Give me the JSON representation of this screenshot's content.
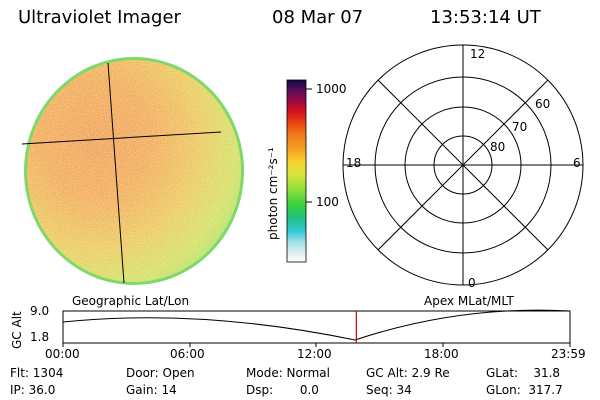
{
  "header": {
    "title": "Ultraviolet Imager",
    "date": "08 Mar 07",
    "time": "13:53:14 UT"
  },
  "colorbar": {
    "unit_label": "photon cm⁻²s⁻¹",
    "ticks": [
      "1000",
      "100"
    ]
  },
  "polar_plot": {
    "mlt_labels": {
      "top": "12",
      "left": "18",
      "right": "6",
      "bottom": "0"
    },
    "lat_labels": [
      "60",
      "70",
      "80"
    ]
  },
  "altitude_panel": {
    "left_title": "Geographic Lat/Lon",
    "right_title": "Apex MLat/MLT",
    "y_axis_title": "GC Alt",
    "y_max": "9.0",
    "y_min": "1.8",
    "x_ticks": [
      "00:00",
      "06:00",
      "12:00",
      "18:00",
      "23:59"
    ],
    "current_time_fraction": 0.5786,
    "marker_color": "#cc0000"
  },
  "info": {
    "flt": "Flt: 1304",
    "ip": "IP: 36.0",
    "door": "Door: Open",
    "gain": "Gain: 14",
    "mode": "Mode: Normal",
    "dsp": "Dsp:       0.0",
    "gc_alt": "GC Alt: 2.9 Re",
    "seq": "Seq: 34",
    "glat": "GLat:    31.8",
    "glon": "GLon:  317.7"
  }
}
